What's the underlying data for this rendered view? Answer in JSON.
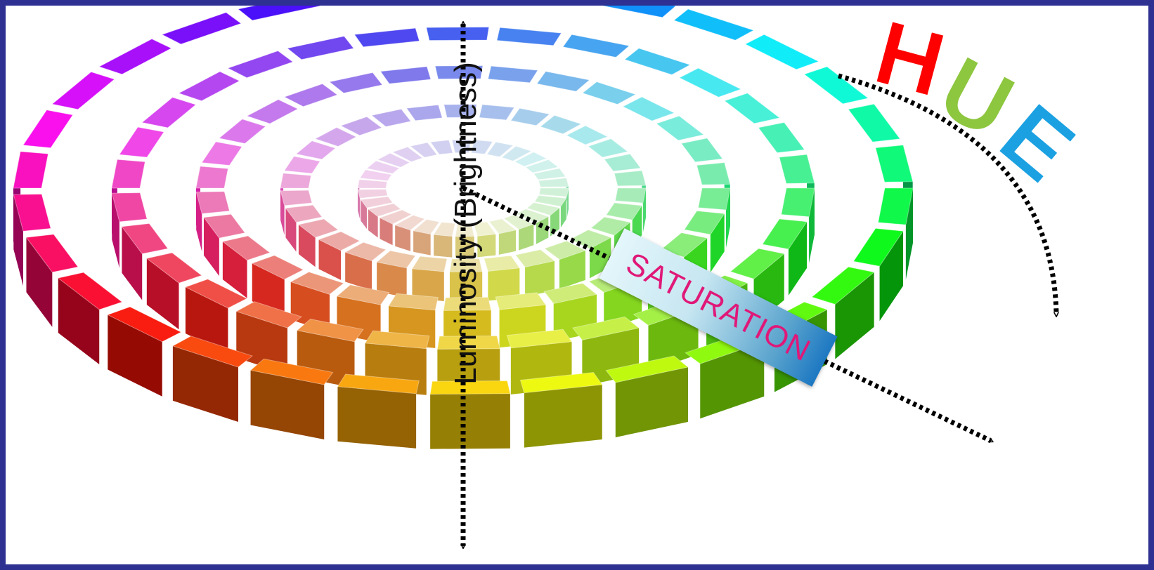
{
  "labels": {
    "luminosity": "Luminosity (Brightness)",
    "saturation": "SATURATION",
    "hue": [
      "H",
      "U",
      "E"
    ]
  },
  "colors": {
    "frame": "#2e3192",
    "hue_letters": [
      "#ff0000",
      "#8dc63f",
      "#1ba1e2"
    ],
    "saturation_text": "#e01878",
    "axis": "#000000"
  },
  "color_wheel": {
    "rings": 5,
    "hue_steps": 30,
    "center_lightness": "light",
    "outer_lightness": "vivid"
  }
}
